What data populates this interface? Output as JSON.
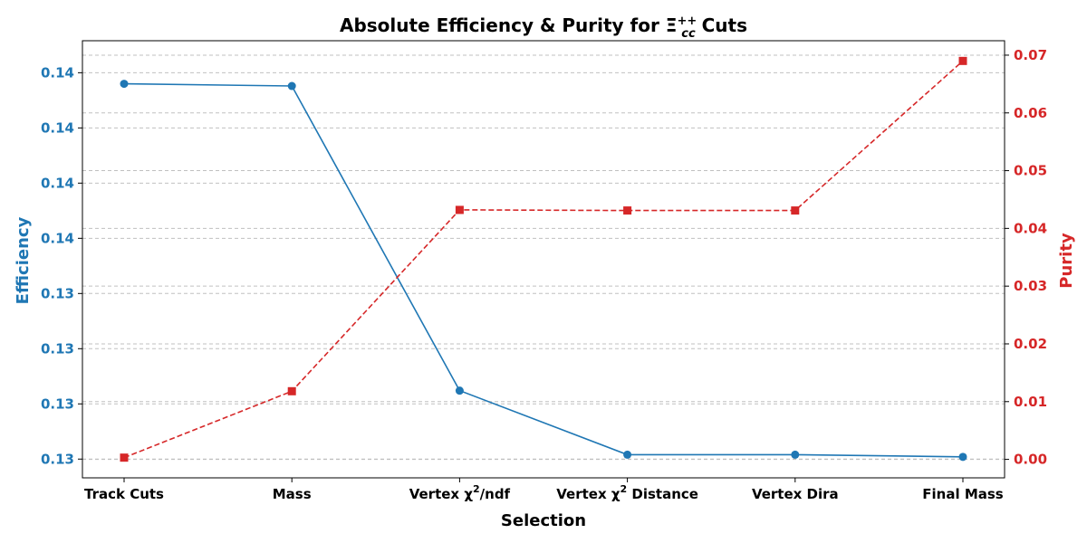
{
  "chart_data": {
    "type": "line",
    "title": "Absolute Efficiency & Purity for Ξcc++ Cuts",
    "title_parts": {
      "prefix": "Absolute Efficiency & Purity for ",
      "symbol": "Ξ",
      "superscript": "++",
      "subscript": "cc",
      "suffix": " Cuts"
    },
    "xlabel": "Selection",
    "categories": [
      "Track Cuts",
      "Mass",
      "Vertex χ2/ndf",
      "Vertex χ2 Distance",
      "Vertex Dira",
      "Final Mass"
    ],
    "category_display": [
      {
        "pre": "Track Cuts",
        "sup": "",
        "post": ""
      },
      {
        "pre": "Mass",
        "sup": "",
        "post": ""
      },
      {
        "pre": "Vertex χ",
        "sup": "2",
        "post": "/ndf"
      },
      {
        "pre": "Vertex χ",
        "sup": "2",
        "post": " Distance"
      },
      {
        "pre": "Vertex Dira",
        "sup": "",
        "post": ""
      },
      {
        "pre": "Final Mass",
        "sup": "",
        "post": ""
      }
    ],
    "grid": true,
    "series": [
      {
        "name": "Efficiency",
        "axis": "left",
        "color": "#1f77b4",
        "marker": "circle",
        "line_style": "solid",
        "values": [
          0.1432,
          0.1431,
          0.1293,
          0.1264,
          0.1264,
          0.1263
        ]
      },
      {
        "name": "Purity",
        "axis": "right",
        "color": "#d62728",
        "marker": "square",
        "line_style": "dashed",
        "values": [
          0.0003,
          0.0118,
          0.0432,
          0.0431,
          0.0431,
          0.069
        ]
      }
    ],
    "left_axis": {
      "label": "Efficiency",
      "color": "#1f77b4",
      "ylim": [
        0.12535,
        0.14515
      ],
      "ticks": [
        0.1262,
        0.1287,
        0.1312,
        0.1337,
        0.1362,
        0.1387,
        0.1412,
        0.1437
      ],
      "tick_labels": [
        "0.13",
        "0.13",
        "0.13",
        "0.13",
        "0.14",
        "0.14",
        "0.14",
        "0.14"
      ]
    },
    "right_axis": {
      "label": "Purity",
      "color": "#d62728",
      "ylim": [
        -0.0032,
        0.0725
      ],
      "ticks": [
        0.0,
        0.01,
        0.02,
        0.03,
        0.04,
        0.05,
        0.06,
        0.07
      ],
      "tick_labels": [
        "0.00",
        "0.01",
        "0.02",
        "0.03",
        "0.04",
        "0.05",
        "0.06",
        "0.07"
      ]
    }
  }
}
